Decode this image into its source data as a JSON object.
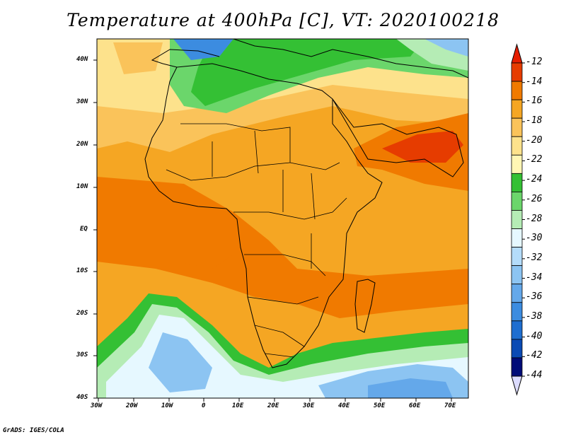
{
  "title": "Temperature at 400hPa [C], VT: 2020100218",
  "credit": "GrADS: IGES/COLA",
  "lat_labels": [
    "40N",
    "30N",
    "20N",
    "10N",
    "EQ",
    "10S",
    "20S",
    "30S",
    "40S"
  ],
  "lon_labels": [
    "30W",
    "20W",
    "10W",
    "0",
    "10E",
    "20E",
    "30E",
    "40E",
    "50E",
    "60E",
    "70E"
  ],
  "colorbar": {
    "labels": [
      "-12",
      "-14",
      "-16",
      "-18",
      "-20",
      "-22",
      "-24",
      "-26",
      "-28",
      "-30",
      "-32",
      "-34",
      "-36",
      "-38",
      "-40",
      "-42",
      "-44"
    ],
    "colors": [
      "#e63c00",
      "#f07a00",
      "#f5a623",
      "#fac35a",
      "#fde28c",
      "#fff6b4",
      "#34c034",
      "#6bd66b",
      "#b5ecb5",
      "#e6f8ff",
      "#b4dcfa",
      "#8cc4f2",
      "#64a8ea",
      "#3c8ce0",
      "#1e6ed0",
      "#0a4ab4",
      "#000c78"
    ],
    "top_arrow": "#e61e00",
    "bottom_arrow": "#dcdcff"
  },
  "map": {
    "region": "Africa",
    "lon_range": [
      -30,
      75
    ],
    "lat_range": [
      -40,
      45
    ],
    "field": "Temperature at 400hPa",
    "units": "C"
  }
}
